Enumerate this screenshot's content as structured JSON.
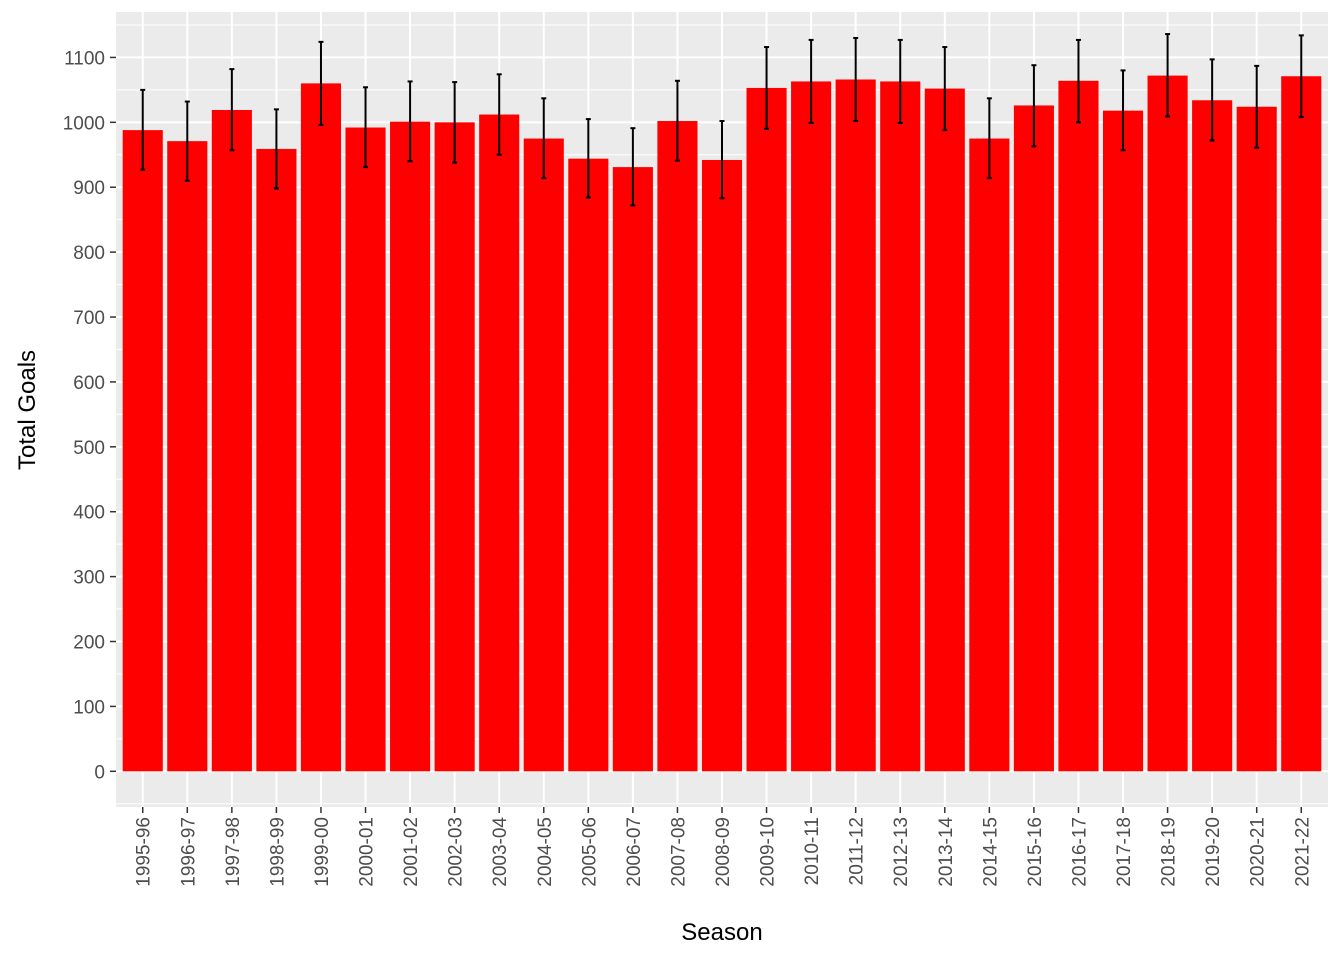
{
  "chart_data": {
    "type": "bar",
    "xlabel": "Season",
    "ylabel": "Total Goals",
    "categories": [
      "1995-96",
      "1996-97",
      "1997-98",
      "1998-99",
      "1999-00",
      "2000-01",
      "2001-02",
      "2002-03",
      "2003-04",
      "2004-05",
      "2005-06",
      "2006-07",
      "2007-08",
      "2008-09",
      "2009-10",
      "2010-11",
      "2011-12",
      "2012-13",
      "2013-14",
      "2014-15",
      "2015-16",
      "2016-17",
      "2017-18",
      "2018-19",
      "2019-20",
      "2020-21",
      "2021-22"
    ],
    "values": [
      988,
      971,
      1019,
      959,
      1060,
      992,
      1001,
      1000,
      1012,
      975,
      944,
      931,
      1002,
      942,
      1053,
      1063,
      1066,
      1063,
      1052,
      975,
      1026,
      1064,
      1018,
      1072,
      1034,
      1024,
      1071
    ],
    "error_low": [
      927,
      910,
      957,
      898,
      996,
      931,
      940,
      938,
      950,
      914,
      884,
      872,
      941,
      883,
      990,
      999,
      1002,
      999,
      988,
      914,
      963,
      1000,
      957,
      1009,
      972,
      961,
      1008
    ],
    "error_high": [
      1050,
      1032,
      1082,
      1020,
      1124,
      1054,
      1063,
      1062,
      1074,
      1037,
      1005,
      991,
      1064,
      1002,
      1116,
      1127,
      1130,
      1127,
      1116,
      1037,
      1088,
      1127,
      1080,
      1136,
      1097,
      1087,
      1134
    ],
    "ylim": [
      -55,
      1170
    ],
    "yticks": [
      0,
      100,
      200,
      300,
      400,
      500,
      600,
      700,
      800,
      900,
      1000,
      1100
    ],
    "bar_color": "#ff0000",
    "error_color": "#000000",
    "panel_background": "#ebebeb",
    "grid_color": "#ffffff",
    "grid": true,
    "legend": "none"
  }
}
